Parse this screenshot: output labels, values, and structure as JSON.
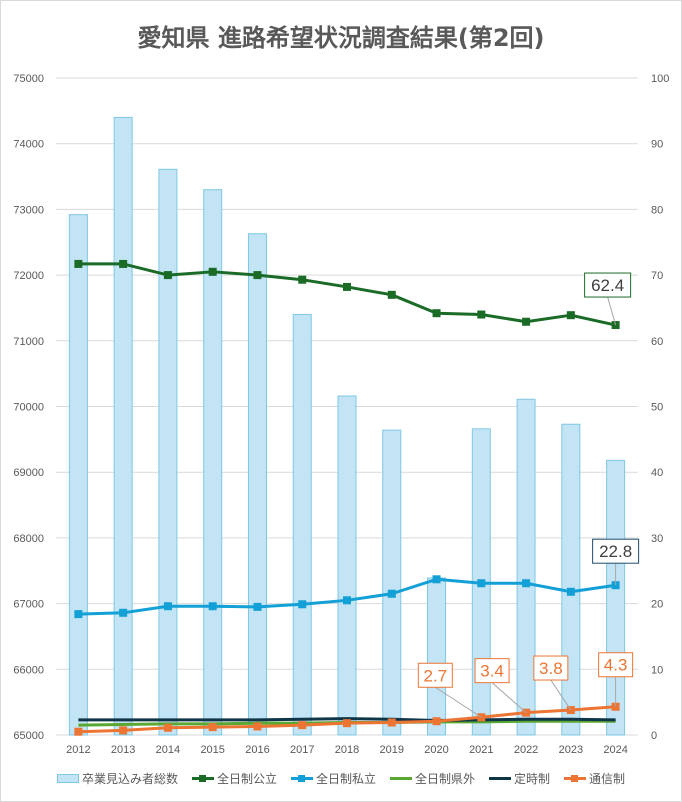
{
  "chart_data": {
    "type": "bar+line",
    "title": "愛知県 進路希望状況調査結果(第2回)",
    "categories": [
      "2012",
      "2013",
      "2014",
      "2015",
      "2016",
      "2017",
      "2018",
      "2019",
      "2020",
      "2021",
      "2022",
      "2023",
      "2024"
    ],
    "left_axis": {
      "ylim": [
        65000,
        75000
      ],
      "ticks": [
        "65000",
        "66000",
        "67000",
        "68000",
        "69000",
        "70000",
        "71000",
        "72000",
        "73000",
        "74000",
        "75000"
      ]
    },
    "right_axis": {
      "ylim": [
        0,
        100
      ],
      "ticks": [
        "0",
        "10",
        "20",
        "30",
        "40",
        "50",
        "60",
        "70",
        "80",
        "90",
        "100"
      ]
    },
    "grid": true,
    "legend_position": "bottom",
    "bar_series": {
      "name": "卒業見込み者総数",
      "axis": "left",
      "color": "#c3e4f5",
      "edge_color": "#7ec8e3",
      "values": [
        72920,
        74400,
        73610,
        73300,
        72630,
        71400,
        70160,
        69640,
        67390,
        69660,
        70110,
        69730,
        69180
      ]
    },
    "series": [
      {
        "name": "全日制公立",
        "axis": "right",
        "color": "#1a6b26",
        "marker": "square",
        "values": [
          71.7,
          71.7,
          70.0,
          70.5,
          70.0,
          69.3,
          68.2,
          67.0,
          64.2,
          64.0,
          62.9,
          63.9,
          62.4
        ],
        "labels": [
          {
            "index": 12,
            "text": "62.4"
          }
        ]
      },
      {
        "name": "全日制私立",
        "axis": "right",
        "color": "#12a0d7",
        "marker": "square",
        "values": [
          18.4,
          18.6,
          19.6,
          19.6,
          19.5,
          19.9,
          20.5,
          21.5,
          23.7,
          23.1,
          23.1,
          21.8,
          22.8
        ],
        "labels": [
          {
            "index": 12,
            "text": "22.8"
          }
        ]
      },
      {
        "name": "全日制県外",
        "axis": "right",
        "color": "#5aa832",
        "marker": "none",
        "values": [
          1.5,
          1.6,
          1.7,
          1.7,
          1.8,
          1.8,
          1.9,
          1.9,
          2.0,
          2.0,
          2.1,
          2.1,
          2.1
        ],
        "labels": []
      },
      {
        "name": "定時制",
        "axis": "right",
        "color": "#0e3548",
        "marker": "none",
        "values": [
          2.3,
          2.3,
          2.3,
          2.3,
          2.3,
          2.4,
          2.5,
          2.4,
          2.2,
          2.3,
          2.4,
          2.4,
          2.3
        ],
        "labels": []
      },
      {
        "name": "通信制",
        "axis": "right",
        "color": "#ec7533",
        "marker": "square",
        "values": [
          0.5,
          0.7,
          1.1,
          1.2,
          1.3,
          1.5,
          1.8,
          1.9,
          2.1,
          2.7,
          3.4,
          3.8,
          4.3
        ],
        "labels": [
          {
            "index": 9,
            "text": "2.7"
          },
          {
            "index": 10,
            "text": "3.4"
          },
          {
            "index": 11,
            "text": "3.8"
          },
          {
            "index": 12,
            "text": "4.3"
          }
        ]
      }
    ]
  }
}
